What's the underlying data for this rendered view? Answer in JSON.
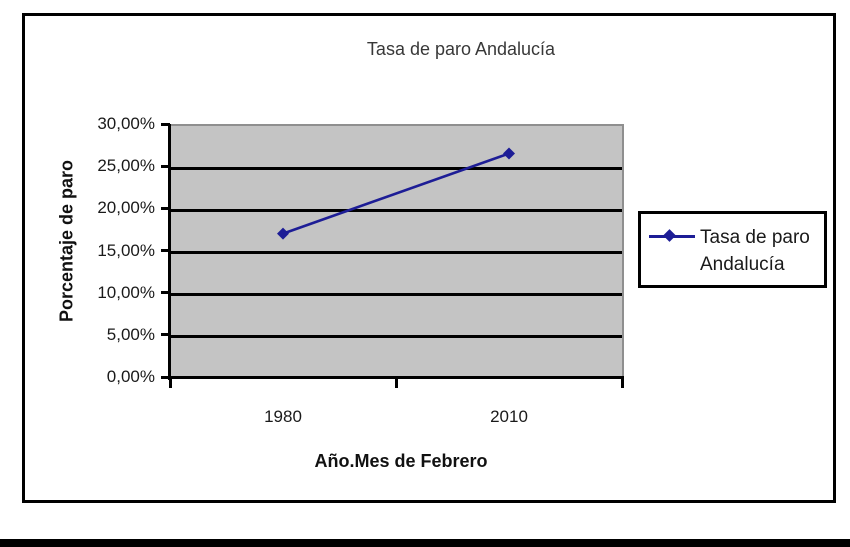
{
  "page": {
    "background_color": "#ffffff",
    "bottom_bar_color": "#000000"
  },
  "chart_data": {
    "type": "line",
    "title": "Tasa de paro Andalucía",
    "categories": [
      "1980",
      "2010"
    ],
    "series": [
      {
        "name": "Tasa de paro Andalucía",
        "values": [
          17.0,
          26.5
        ],
        "color": "#1D1D96",
        "marker": "diamond"
      }
    ],
    "xlabel": "Año.Mes de Febrero",
    "ylabel": "Porcentaje de paro",
    "ylim": [
      0,
      30
    ],
    "ytick_step": 5,
    "ytick_labels": [
      "0,00%",
      "5,00%",
      "10,00%",
      "15,00%",
      "20,00%",
      "25,00%",
      "30,00%"
    ],
    "grid": "horizontal",
    "gridline_color": "#000000",
    "plot_bg_color": "#C4C4C4",
    "plot_border_color": "#8F8F8F",
    "legend_position": "right",
    "legend_lines": [
      "Tasa de paro",
      "Andalucía"
    ]
  }
}
